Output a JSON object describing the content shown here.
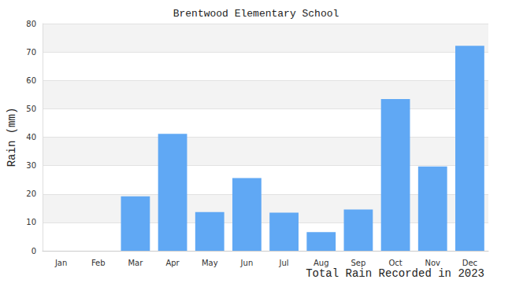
{
  "chart_data": {
    "type": "bar",
    "title": "Brentwood Elementary School",
    "ylabel": "Rain (mm)",
    "annotation": "Total Rain Recorded in 2023",
    "categories": [
      "Jan",
      "Feb",
      "Mar",
      "Apr",
      "May",
      "Jun",
      "Jul",
      "Aug",
      "Sep",
      "Oct",
      "Nov",
      "Dec"
    ],
    "values": [
      0,
      0,
      19.2,
      41.2,
      13.6,
      25.6,
      13.4,
      6.6,
      14.5,
      53.4,
      29.7,
      72.2
    ],
    "color": "#60a8f4",
    "ylim": [
      0,
      80
    ],
    "yticks": [
      0,
      10,
      20,
      30,
      40,
      50,
      60,
      70,
      80
    ],
    "grid": true
  }
}
